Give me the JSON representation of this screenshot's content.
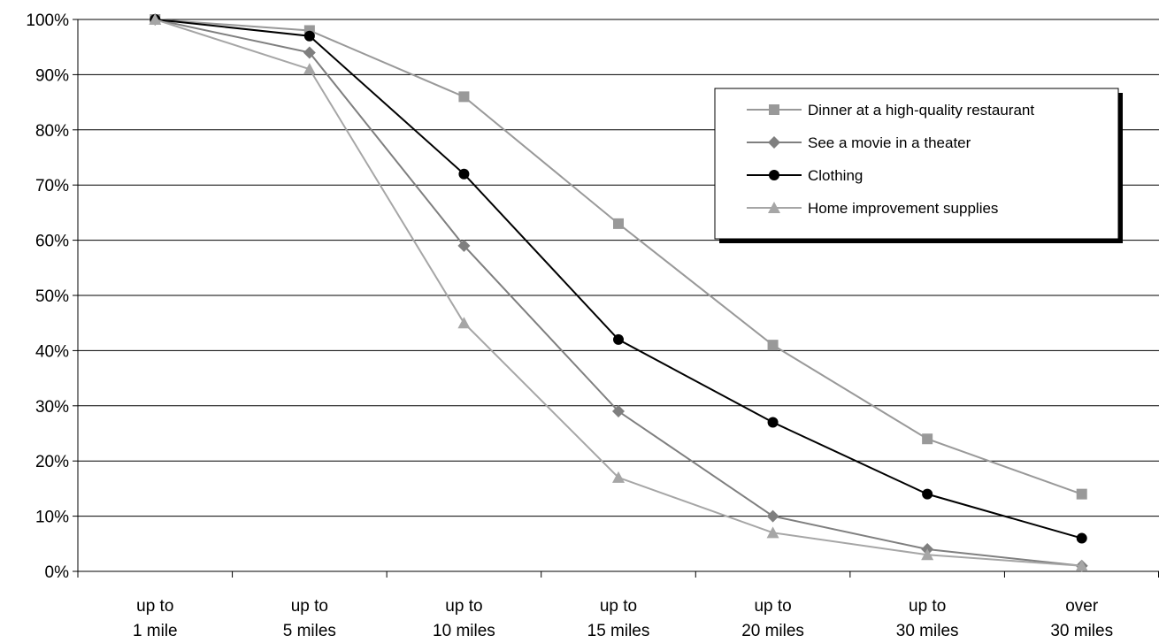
{
  "chart_data": {
    "type": "line",
    "title": "",
    "xlabel": "",
    "ylabel": "",
    "categories": [
      [
        "up to",
        "1 mile"
      ],
      [
        "up to",
        "5 miles"
      ],
      [
        "up to",
        "10 miles"
      ],
      [
        "up to",
        "15 miles"
      ],
      [
        "up to",
        "20 miles"
      ],
      [
        "up to",
        "30 miles"
      ],
      [
        "over",
        "30 miles"
      ]
    ],
    "y_ticks": [
      "0%",
      "10%",
      "20%",
      "30%",
      "40%",
      "50%",
      "60%",
      "70%",
      "80%",
      "90%",
      "100%"
    ],
    "ylim": [
      0,
      100
    ],
    "grid": true,
    "legend_position": "top-right",
    "series": [
      {
        "name": "Dinner at a high-quality restaurant",
        "values": [
          100,
          98,
          86,
          63,
          41,
          24,
          14
        ],
        "color": "#999999",
        "marker": "square"
      },
      {
        "name": "See a movie in a theater",
        "values": [
          100,
          94,
          59,
          29,
          10,
          4,
          1
        ],
        "color": "#7f7f7f",
        "marker": "diamond"
      },
      {
        "name": "Clothing",
        "values": [
          100,
          97,
          72,
          42,
          27,
          14,
          6
        ],
        "color": "#000000",
        "marker": "circle"
      },
      {
        "name": "Home improvement supplies",
        "values": [
          100,
          91,
          45,
          17,
          7,
          3,
          1
        ],
        "color": "#a6a6a6",
        "marker": "triangle"
      }
    ]
  }
}
